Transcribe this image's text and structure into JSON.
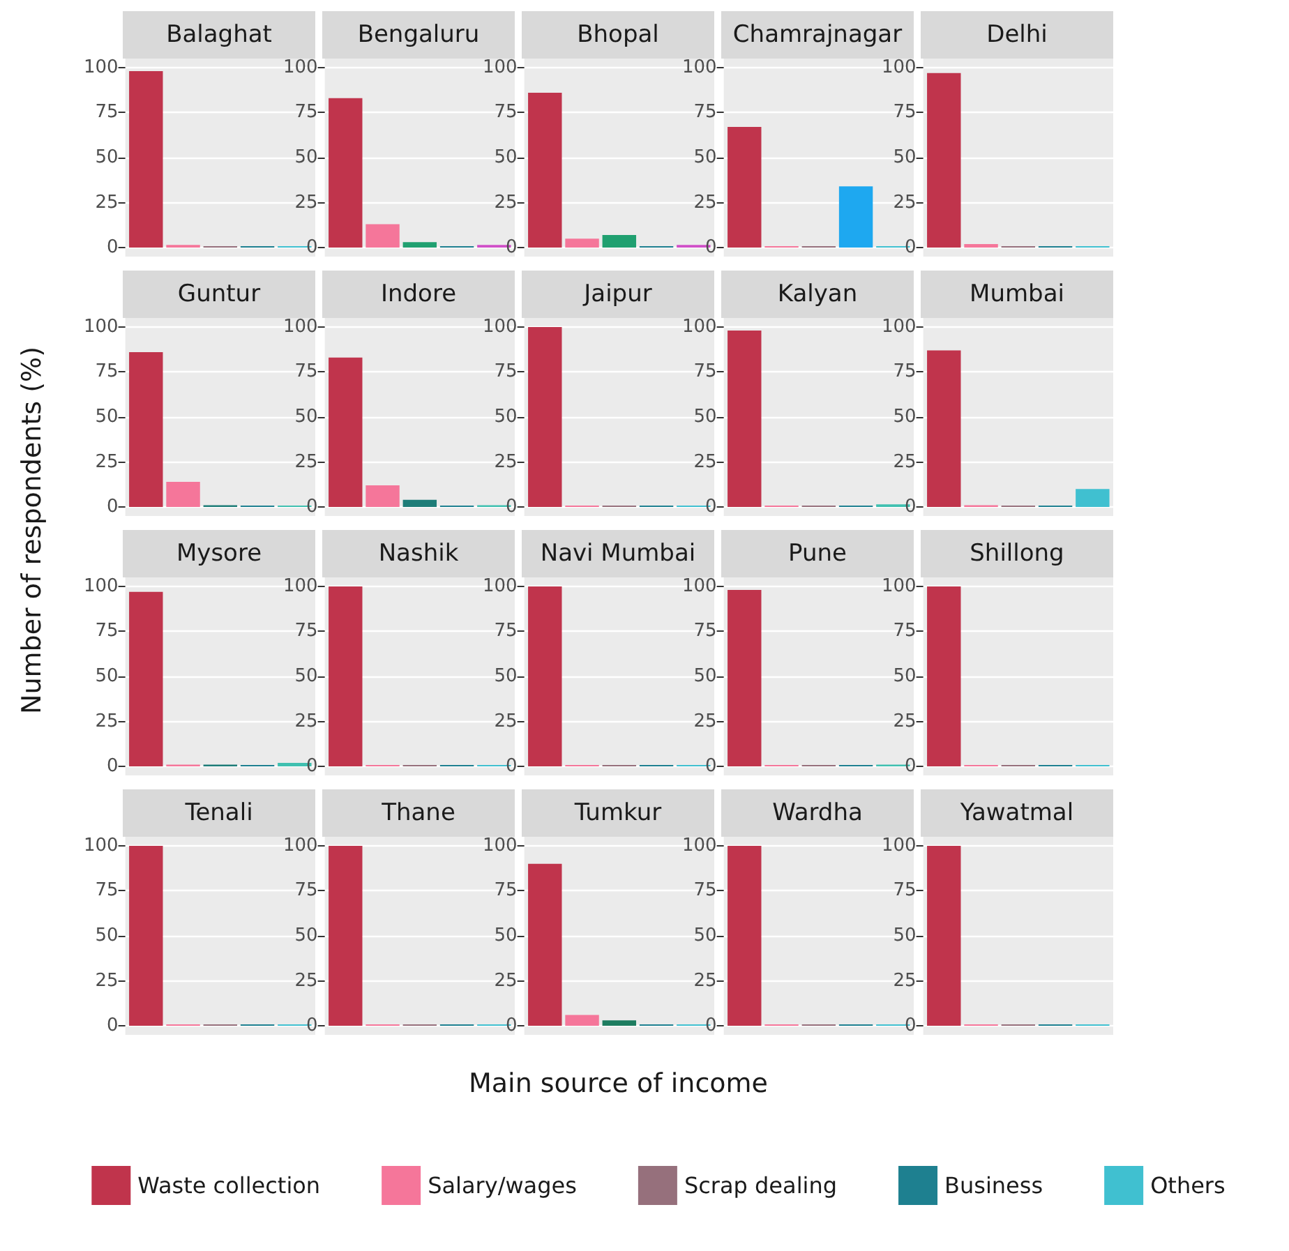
{
  "chart_data": [
    {
      "type": "bar",
      "title": "Balaghat",
      "ylabel": "Number of respondents (%)",
      "categories": [
        null
      ],
      "ylim": [
        -5,
        105
      ],
      "yticks": [
        0,
        25,
        50,
        75,
        100
      ],
      "grid": true,
      "legend": "bottom",
      "series": [
        {
          "name": "Waste collection",
          "color": "#c0344c",
          "values": [
            98
          ]
        },
        {
          "name": "Salary/wages",
          "color": "#f5769a",
          "values": [
            1.5
          ]
        },
        {
          "name": "Scrap dealing",
          "color": "#96707c",
          "values": [
            0
          ]
        },
        {
          "name": "Business",
          "color": "#1e8090",
          "values": [
            0
          ]
        },
        {
          "name": "Others",
          "color": "#40c0d0",
          "values": [
            0
          ]
        }
      ]
    },
    {
      "type": "bar",
      "title": "Bengaluru",
      "categories": [
        null
      ],
      "ylim": [
        -5,
        105
      ],
      "yticks": [
        0,
        25,
        50,
        75,
        100
      ],
      "grid": true,
      "series": [
        {
          "color": "#c0344c",
          "values": [
            83
          ]
        },
        {
          "color": "#f5769a",
          "values": [
            13
          ]
        },
        {
          "color": "#20a070",
          "values": [
            3
          ]
        },
        {
          "color": "#1e8090",
          "values": [
            0
          ]
        },
        {
          "color": "#d050c8",
          "values": [
            1.5
          ]
        }
      ]
    },
    {
      "type": "bar",
      "title": "Bhopal",
      "categories": [
        null
      ],
      "ylim": [
        -5,
        105
      ],
      "yticks": [
        0,
        25,
        50,
        75,
        100
      ],
      "grid": true,
      "series": [
        {
          "color": "#c0344c",
          "values": [
            86
          ]
        },
        {
          "color": "#f5769a",
          "values": [
            5
          ]
        },
        {
          "color": "#20a070",
          "values": [
            7
          ]
        },
        {
          "color": "#1e8090",
          "values": [
            0
          ]
        },
        {
          "color": "#d050c8",
          "values": [
            1.5
          ]
        }
      ]
    },
    {
      "type": "bar",
      "title": "Chamrajnagar",
      "categories": [
        null
      ],
      "ylim": [
        -5,
        105
      ],
      "yticks": [
        0,
        25,
        50,
        75,
        100
      ],
      "grid": true,
      "series": [
        {
          "color": "#c0344c",
          "values": [
            67
          ]
        },
        {
          "color": "#f5769a",
          "values": [
            0
          ]
        },
        {
          "color": "#96707c",
          "values": [
            0
          ]
        },
        {
          "color": "#1ea8f0",
          "values": [
            34
          ]
        },
        {
          "color": "#40c0d0",
          "values": [
            0
          ]
        }
      ]
    },
    {
      "type": "bar",
      "title": "Delhi",
      "categories": [
        null
      ],
      "ylim": [
        -5,
        105
      ],
      "yticks": [
        0,
        25,
        50,
        75,
        100
      ],
      "grid": true,
      "series": [
        {
          "color": "#c0344c",
          "values": [
            97
          ]
        },
        {
          "color": "#f5769a",
          "values": [
            2
          ]
        },
        {
          "color": "#96707c",
          "values": [
            0
          ]
        },
        {
          "color": "#1e8090",
          "values": [
            0
          ]
        },
        {
          "color": "#40c0d0",
          "values": [
            0
          ]
        }
      ]
    },
    {
      "type": "bar",
      "title": "Guntur",
      "categories": [
        null
      ],
      "ylim": [
        -5,
        105
      ],
      "yticks": [
        0,
        25,
        50,
        75,
        100
      ],
      "grid": true,
      "series": [
        {
          "color": "#c0344c",
          "values": [
            86
          ]
        },
        {
          "color": "#f5769a",
          "values": [
            14
          ]
        },
        {
          "color": "#1e7d78",
          "values": [
            1
          ]
        },
        {
          "color": "#1e8090",
          "values": [
            0
          ]
        },
        {
          "color": "#40c0b0",
          "values": [
            0.5
          ]
        }
      ]
    },
    {
      "type": "bar",
      "title": "Indore",
      "categories": [
        null
      ],
      "ylim": [
        -5,
        105
      ],
      "yticks": [
        0,
        25,
        50,
        75,
        100
      ],
      "grid": true,
      "series": [
        {
          "color": "#c0344c",
          "values": [
            83
          ]
        },
        {
          "color": "#f5769a",
          "values": [
            12
          ]
        },
        {
          "color": "#1e7d78",
          "values": [
            4
          ]
        },
        {
          "color": "#1e8090",
          "values": [
            0
          ]
        },
        {
          "color": "#40c0b0",
          "values": [
            1
          ]
        }
      ]
    },
    {
      "type": "bar",
      "title": "Jaipur",
      "categories": [
        null
      ],
      "ylim": [
        -5,
        105
      ],
      "yticks": [
        0,
        25,
        50,
        75,
        100
      ],
      "grid": true,
      "series": [
        {
          "color": "#c0344c",
          "values": [
            100
          ]
        },
        {
          "color": "#f5769a",
          "values": [
            0
          ]
        },
        {
          "color": "#96707c",
          "values": [
            0
          ]
        },
        {
          "color": "#1e8090",
          "values": [
            0
          ]
        },
        {
          "color": "#40c0d0",
          "values": [
            0
          ]
        }
      ]
    },
    {
      "type": "bar",
      "title": "Kalyan",
      "categories": [
        null
      ],
      "ylim": [
        -5,
        105
      ],
      "yticks": [
        0,
        25,
        50,
        75,
        100
      ],
      "grid": true,
      "series": [
        {
          "color": "#c0344c",
          "values": [
            98
          ]
        },
        {
          "color": "#f5769a",
          "values": [
            0
          ]
        },
        {
          "color": "#96707c",
          "values": [
            0
          ]
        },
        {
          "color": "#1e8090",
          "values": [
            0
          ]
        },
        {
          "color": "#40c0b0",
          "values": [
            1.5
          ]
        }
      ]
    },
    {
      "type": "bar",
      "title": "Mumbai",
      "categories": [
        null
      ],
      "ylim": [
        -5,
        105
      ],
      "yticks": [
        0,
        25,
        50,
        75,
        100
      ],
      "grid": true,
      "series": [
        {
          "color": "#c0344c",
          "values": [
            87
          ]
        },
        {
          "color": "#f5769a",
          "values": [
            1
          ]
        },
        {
          "color": "#96707c",
          "values": [
            0
          ]
        },
        {
          "color": "#1e8090",
          "values": [
            0
          ]
        },
        {
          "color": "#40c0d0",
          "values": [
            10
          ]
        }
      ]
    },
    {
      "type": "bar",
      "title": "Mysore",
      "categories": [
        null
      ],
      "ylim": [
        -5,
        105
      ],
      "yticks": [
        0,
        25,
        50,
        75,
        100
      ],
      "grid": true,
      "series": [
        {
          "color": "#c0344c",
          "values": [
            97
          ]
        },
        {
          "color": "#f5769a",
          "values": [
            1
          ]
        },
        {
          "color": "#1e7d78",
          "values": [
            1
          ]
        },
        {
          "color": "#1e8090",
          "values": [
            0
          ]
        },
        {
          "color": "#40c0b0",
          "values": [
            2
          ]
        }
      ]
    },
    {
      "type": "bar",
      "title": "Nashik",
      "categories": [
        null
      ],
      "ylim": [
        -5,
        105
      ],
      "yticks": [
        0,
        25,
        50,
        75,
        100
      ],
      "grid": true,
      "series": [
        {
          "color": "#c0344c",
          "values": [
            100
          ]
        },
        {
          "color": "#f5769a",
          "values": [
            0
          ]
        },
        {
          "color": "#96707c",
          "values": [
            0
          ]
        },
        {
          "color": "#1e8090",
          "values": [
            0
          ]
        },
        {
          "color": "#40c0d0",
          "values": [
            0
          ]
        }
      ]
    },
    {
      "type": "bar",
      "title": "Navi Mumbai",
      "categories": [
        null
      ],
      "ylim": [
        -5,
        105
      ],
      "yticks": [
        0,
        25,
        50,
        75,
        100
      ],
      "grid": true,
      "series": [
        {
          "color": "#c0344c",
          "values": [
            100
          ]
        },
        {
          "color": "#f5769a",
          "values": [
            0
          ]
        },
        {
          "color": "#96707c",
          "values": [
            0
          ]
        },
        {
          "color": "#1e8090",
          "values": [
            0
          ]
        },
        {
          "color": "#40c0d0",
          "values": [
            0
          ]
        }
      ]
    },
    {
      "type": "bar",
      "title": "Pune",
      "categories": [
        null
      ],
      "ylim": [
        -5,
        105
      ],
      "yticks": [
        0,
        25,
        50,
        75,
        100
      ],
      "grid": true,
      "series": [
        {
          "color": "#c0344c",
          "values": [
            98
          ]
        },
        {
          "color": "#f5769a",
          "values": [
            0
          ]
        },
        {
          "color": "#96707c",
          "values": [
            0
          ]
        },
        {
          "color": "#1e8090",
          "values": [
            0
          ]
        },
        {
          "color": "#40c0b0",
          "values": [
            1
          ]
        }
      ]
    },
    {
      "type": "bar",
      "title": "Shillong",
      "categories": [
        null
      ],
      "ylim": [
        -5,
        105
      ],
      "yticks": [
        0,
        25,
        50,
        75,
        100
      ],
      "grid": true,
      "series": [
        {
          "color": "#c0344c",
          "values": [
            100
          ]
        },
        {
          "color": "#f5769a",
          "values": [
            0
          ]
        },
        {
          "color": "#96707c",
          "values": [
            0
          ]
        },
        {
          "color": "#1e8090",
          "values": [
            0
          ]
        },
        {
          "color": "#40c0d0",
          "values": [
            0
          ]
        }
      ]
    },
    {
      "type": "bar",
      "title": "Tenali",
      "categories": [
        null
      ],
      "ylim": [
        -5,
        105
      ],
      "yticks": [
        0,
        25,
        50,
        75,
        100
      ],
      "grid": true,
      "series": [
        {
          "color": "#c0344c",
          "values": [
            100
          ]
        },
        {
          "color": "#f5769a",
          "values": [
            0
          ]
        },
        {
          "color": "#96707c",
          "values": [
            0
          ]
        },
        {
          "color": "#1e8090",
          "values": [
            0
          ]
        },
        {
          "color": "#40c0d0",
          "values": [
            0
          ]
        }
      ]
    },
    {
      "type": "bar",
      "title": "Thane",
      "categories": [
        null
      ],
      "ylim": [
        -5,
        105
      ],
      "yticks": [
        0,
        25,
        50,
        75,
        100
      ],
      "grid": true,
      "series": [
        {
          "color": "#c0344c",
          "values": [
            100
          ]
        },
        {
          "color": "#f5769a",
          "values": [
            0
          ]
        },
        {
          "color": "#96707c",
          "values": [
            0
          ]
        },
        {
          "color": "#1e8090",
          "values": [
            0
          ]
        },
        {
          "color": "#40c0d0",
          "values": [
            0
          ]
        }
      ]
    },
    {
      "type": "bar",
      "title": "Tumkur",
      "xlabel": "Main source of income",
      "categories": [
        null
      ],
      "ylim": [
        -5,
        105
      ],
      "yticks": [
        0,
        25,
        50,
        75,
        100
      ],
      "grid": true,
      "series": [
        {
          "color": "#c0344c",
          "values": [
            90
          ]
        },
        {
          "color": "#f5769a",
          "values": [
            6
          ]
        },
        {
          "color": "#1e7d60",
          "values": [
            3
          ]
        },
        {
          "color": "#1e8090",
          "values": [
            0
          ]
        },
        {
          "color": "#40c0d0",
          "values": [
            0
          ]
        }
      ]
    },
    {
      "type": "bar",
      "title": "Wardha",
      "categories": [
        null
      ],
      "ylim": [
        -5,
        105
      ],
      "yticks": [
        0,
        25,
        50,
        75,
        100
      ],
      "grid": true,
      "series": [
        {
          "color": "#c0344c",
          "values": [
            100
          ]
        },
        {
          "color": "#f5769a",
          "values": [
            0
          ]
        },
        {
          "color": "#96707c",
          "values": [
            0
          ]
        },
        {
          "color": "#1e8090",
          "values": [
            0
          ]
        },
        {
          "color": "#40c0d0",
          "values": [
            0
          ]
        }
      ]
    },
    {
      "type": "bar",
      "title": "Yawatmal",
      "categories": [
        null
      ],
      "ylim": [
        -5,
        105
      ],
      "yticks": [
        0,
        25,
        50,
        75,
        100
      ],
      "grid": true,
      "series": [
        {
          "color": "#c0344c",
          "values": [
            100
          ]
        },
        {
          "color": "#f5769a",
          "values": [
            0
          ]
        },
        {
          "color": "#96707c",
          "values": [
            0
          ]
        },
        {
          "color": "#1e8090",
          "values": [
            0
          ]
        },
        {
          "color": "#40c0d0",
          "values": [
            0
          ]
        }
      ]
    }
  ]
}
